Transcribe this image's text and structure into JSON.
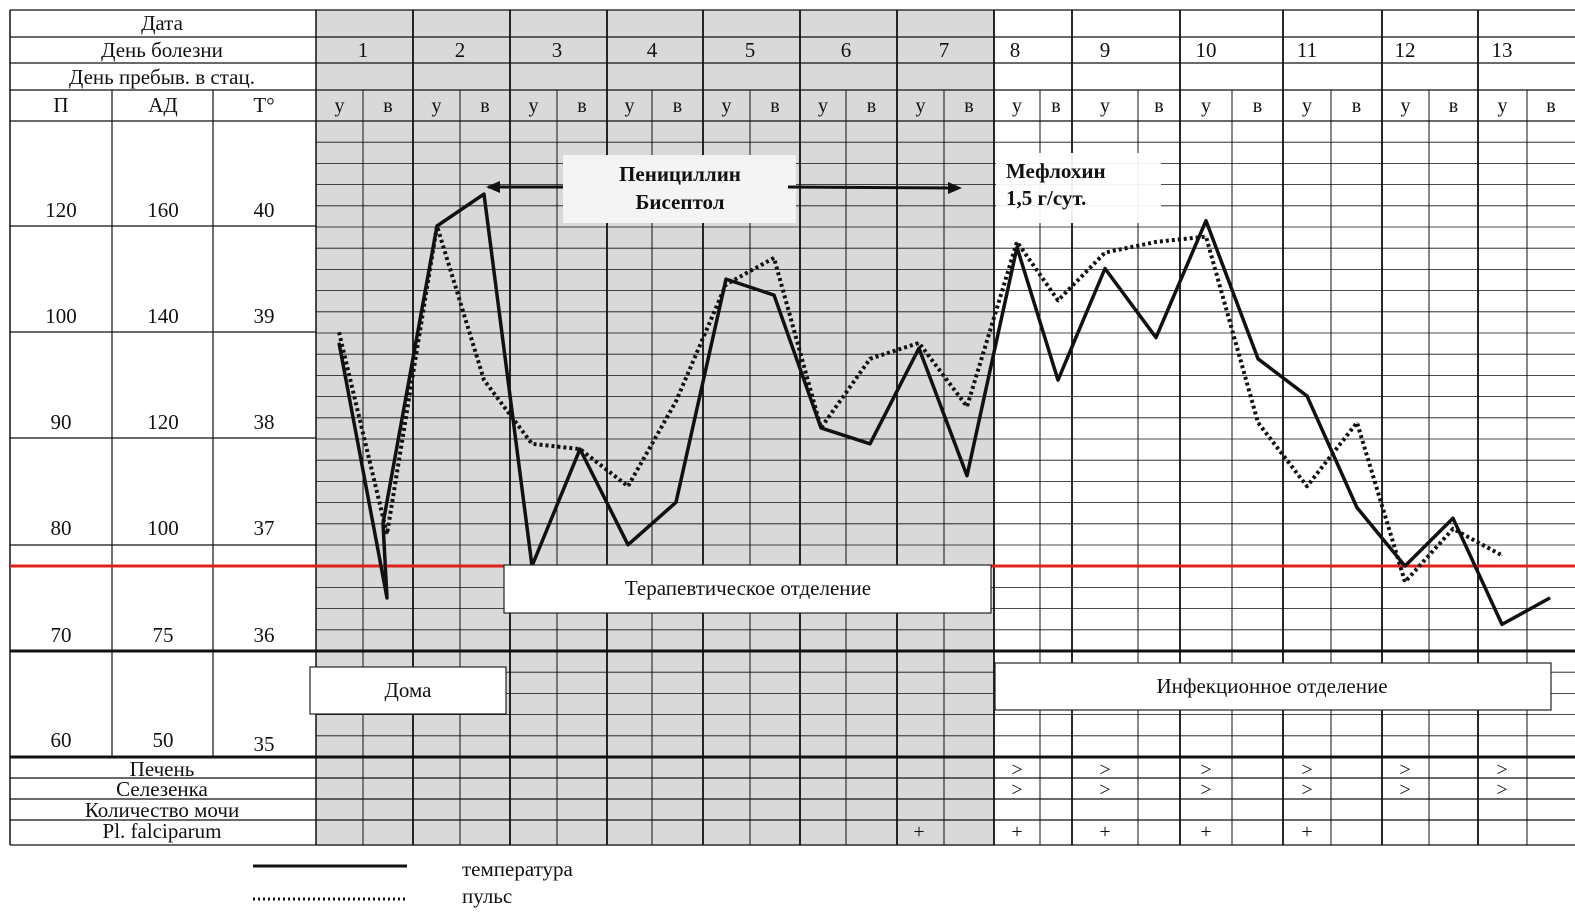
{
  "left_headers": {
    "date": "Дата",
    "illness_day": "День болезни",
    "hospital_day": "День пребыв. в стац.",
    "col_pulse": "П",
    "col_bp": "АД",
    "col_temp": "Т°"
  },
  "axis_labels": {
    "pulse": [
      "120",
      "100",
      "90",
      "80",
      "70",
      "60"
    ],
    "bp": [
      "160",
      "140",
      "120",
      "100",
      "75",
      "50"
    ],
    "temp": [
      "40",
      "39",
      "38",
      "37",
      "36",
      "35"
    ]
  },
  "days": [
    "1",
    "2",
    "3",
    "4",
    "5",
    "6",
    "7",
    "8",
    "9",
    "10",
    "11",
    "12",
    "13"
  ],
  "slot_labels": {
    "morning": "у",
    "evening": "в"
  },
  "annotations": {
    "drug1_line1": "Пенициллин",
    "drug1_line2": "Бисептол",
    "drug2_line1": "Мефлохин",
    "drug2_line2": "1,5 г/сут."
  },
  "locations": {
    "home": "Дома",
    "therapy": "Терапевтическое отделение",
    "infectious": "Инфекционное отделение"
  },
  "bottom_rows": {
    "liver": "Печень",
    "spleen": "Селезенка",
    "urine": "Количество мочи",
    "falciparum": "Pl. falciparum",
    "liver_marks": [
      {
        "day": 8,
        "mark": ">"
      },
      {
        "day": 9,
        "mark": ">"
      },
      {
        "day": 10,
        "mark": ">"
      },
      {
        "day": 11,
        "mark": ">"
      },
      {
        "day": 12,
        "mark": ">"
      },
      {
        "day": 13,
        "mark": ">"
      }
    ],
    "spleen_marks": [
      {
        "day": 8,
        "mark": ">"
      },
      {
        "day": 9,
        "mark": ">"
      },
      {
        "day": 10,
        "mark": ">"
      },
      {
        "day": 11,
        "mark": ">"
      },
      {
        "day": 12,
        "mark": ">"
      },
      {
        "day": 13,
        "mark": ">"
      }
    ],
    "falciparum_marks": [
      {
        "day": 7,
        "mark": "+"
      },
      {
        "day": 8,
        "mark": "+"
      },
      {
        "day": 9,
        "mark": "+"
      },
      {
        "day": 10,
        "mark": "+"
      },
      {
        "day": 11,
        "mark": "+"
      }
    ]
  },
  "legend": {
    "temperature": "температура",
    "pulse": "пульс"
  },
  "colors": {
    "shaded_area": "#d9d9d9",
    "reference_line": "#e0201b",
    "lines": "#111111"
  },
  "chart_data": {
    "type": "line",
    "shaded_days": [
      1,
      7
    ],
    "reference_temperature": 36.8,
    "x_unit": "day of illness (morning / evening)",
    "series": [
      {
        "name": "температура",
        "style": "solid",
        "points": [
          {
            "day": 1,
            "slot": "у",
            "temp": 38.9
          },
          {
            "day": 1,
            "slot": "в",
            "temp": 36.5
          },
          {
            "day": 1.5,
            "slot": "в",
            "temp": 37.2
          },
          {
            "day": 2,
            "slot": "у",
            "temp": 40.0
          },
          {
            "day": 2,
            "slot": "в",
            "temp": 40.3
          },
          {
            "day": 3,
            "slot": "у",
            "temp": 36.8
          },
          {
            "day": 3,
            "slot": "в",
            "temp": 37.9
          },
          {
            "day": 4,
            "slot": "у",
            "temp": 37.0
          },
          {
            "day": 4,
            "slot": "в",
            "temp": 37.4
          },
          {
            "day": 5,
            "slot": "у",
            "temp": 39.5
          },
          {
            "day": 5,
            "slot": "в",
            "temp": 39.35
          },
          {
            "day": 6,
            "slot": "у",
            "temp": 38.1
          },
          {
            "day": 6,
            "slot": "в",
            "temp": 37.95
          },
          {
            "day": 7,
            "slot": "у",
            "temp": 38.85
          },
          {
            "day": 7,
            "slot": "в",
            "temp": 37.65
          },
          {
            "day": 8,
            "slot": "у",
            "temp": 39.8
          },
          {
            "day": 8,
            "slot": "в",
            "temp": 38.55
          },
          {
            "day": 9,
            "slot": "у",
            "temp": 39.6
          },
          {
            "day": 9,
            "slot": "в",
            "temp": 38.95
          },
          {
            "day": 10,
            "slot": "у",
            "temp": 40.05
          },
          {
            "day": 10,
            "slot": "в",
            "temp": 38.75
          },
          {
            "day": 11,
            "slot": "у",
            "temp": 38.4
          },
          {
            "day": 11,
            "slot": "в",
            "temp": 37.35
          },
          {
            "day": 12,
            "slot": "у",
            "temp": 36.8
          },
          {
            "day": 12,
            "slot": "в",
            "temp": 37.25
          },
          {
            "day": 13,
            "slot": "у",
            "temp": 36.25
          },
          {
            "day": 13,
            "slot": "в",
            "temp": 36.5
          }
        ]
      },
      {
        "name": "пульс",
        "style": "dotted",
        "points": [
          {
            "day": 1,
            "slot": "у",
            "temp": 39.0
          },
          {
            "day": 1,
            "slot": "в",
            "temp": 37.1
          },
          {
            "day": 2,
            "slot": "у",
            "temp": 40.0
          },
          {
            "day": 2,
            "slot": "в",
            "temp": 38.55
          },
          {
            "day": 3,
            "slot": "у",
            "temp": 37.95
          },
          {
            "day": 3,
            "slot": "в",
            "temp": 37.9
          },
          {
            "day": 4,
            "slot": "у",
            "temp": 37.55
          },
          {
            "day": 4,
            "slot": "в",
            "temp": 38.35
          },
          {
            "day": 5,
            "slot": "у",
            "temp": 39.45
          },
          {
            "day": 5,
            "slot": "в",
            "temp": 39.7
          },
          {
            "day": 6,
            "slot": "у",
            "temp": 38.1
          },
          {
            "day": 6,
            "slot": "в",
            "temp": 38.75
          },
          {
            "day": 7,
            "slot": "у",
            "temp": 38.9
          },
          {
            "day": 7,
            "slot": "в",
            "temp": 38.3
          },
          {
            "day": 8,
            "slot": "у",
            "temp": 39.85
          },
          {
            "day": 8,
            "slot": "в",
            "temp": 39.3
          },
          {
            "day": 9,
            "slot": "у",
            "temp": 39.75
          },
          {
            "day": 9,
            "slot": "в",
            "temp": 39.85
          },
          {
            "day": 10,
            "slot": "у",
            "temp": 39.9
          },
          {
            "day": 10,
            "slot": "в",
            "temp": 38.15
          },
          {
            "day": 11,
            "slot": "у",
            "temp": 37.55
          },
          {
            "day": 11,
            "slot": "в",
            "temp": 38.15
          },
          {
            "day": 12,
            "slot": "у",
            "temp": 36.65
          },
          {
            "day": 12,
            "slot": "в",
            "temp": 37.15
          },
          {
            "day": 13,
            "slot": "у",
            "temp": 36.9
          }
        ]
      }
    ]
  }
}
